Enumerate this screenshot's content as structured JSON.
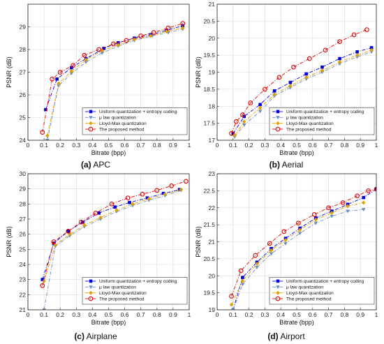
{
  "figure": {
    "legend": [
      "Uniform quantization + entropy coding",
      "μ law quantization",
      "Lloyd-Max quantization",
      "The proposed method"
    ]
  },
  "chart_data": [
    {
      "type": "line",
      "panel_label": "(a)",
      "caption": "APC",
      "xlabel": "Bitrate (bpp)",
      "ylabel": "PSNR (dB)",
      "xlim": [
        0,
        1
      ],
      "ylim": [
        24,
        30
      ],
      "xticks": [
        "0",
        "0.1",
        "0.2",
        "0.3",
        "0.4",
        "0.5",
        "0.6",
        "0.7",
        "0.8",
        "0.9",
        "1"
      ],
      "yticks": [
        "24",
        "25",
        "26",
        "27",
        "28",
        "29"
      ],
      "ytickvals": [
        24,
        25,
        26,
        27,
        28,
        29
      ],
      "grid": true,
      "legend_position": "lower-right",
      "series": [
        {
          "name": "Uniform quantization + entropy coding",
          "color": "#0000dd",
          "style": "dashdot",
          "marker": "square",
          "x": [
            0.11,
            0.18,
            0.27,
            0.36,
            0.47,
            0.56,
            0.66,
            0.76,
            0.86,
            0.96
          ],
          "y": [
            25.35,
            26.7,
            27.2,
            27.6,
            28.05,
            28.3,
            28.5,
            28.65,
            28.85,
            29.05
          ]
        },
        {
          "name": "μ law quantization",
          "color": "#6a8fbf",
          "style": "dashdot",
          "marker": "triangle-down",
          "x": [
            0.12,
            0.19,
            0.27,
            0.36,
            0.46,
            0.56,
            0.66,
            0.77,
            0.87,
            0.96
          ],
          "y": [
            24.0,
            26.4,
            26.95,
            27.45,
            27.85,
            28.15,
            28.4,
            28.6,
            28.75,
            28.9
          ]
        },
        {
          "name": "Lloyd-Max quantization",
          "color": "#e0a000",
          "style": "dashdot",
          "marker": "diamond",
          "x": [
            0.12,
            0.19,
            0.27,
            0.36,
            0.46,
            0.56,
            0.66,
            0.76,
            0.86,
            0.96
          ],
          "y": [
            24.2,
            26.5,
            27.05,
            27.55,
            27.95,
            28.2,
            28.45,
            28.6,
            28.8,
            28.95
          ]
        },
        {
          "name": "The proposed method",
          "color": "#dd0000",
          "style": "dashdot",
          "marker": "circle",
          "x": [
            0.09,
            0.15,
            0.2,
            0.28,
            0.35,
            0.44,
            0.53,
            0.61,
            0.7,
            0.78,
            0.87,
            0.96
          ],
          "y": [
            24.35,
            26.7,
            27.0,
            27.3,
            27.75,
            28.0,
            28.25,
            28.4,
            28.6,
            28.75,
            28.95,
            29.15
          ]
        }
      ]
    },
    {
      "type": "line",
      "panel_label": "(b)",
      "caption": "Aerial",
      "xlabel": "Bitrate (bpp)",
      "ylabel": "PSNR (dB)",
      "xlim": [
        0,
        1
      ],
      "ylim": [
        17,
        21
      ],
      "xticks": [
        "0",
        "0.1",
        "0.2",
        "0.3",
        "0.4",
        "0.5",
        "0.6",
        "0.7",
        "0.8",
        "0.9",
        "1"
      ],
      "yticks": [
        "17",
        "17.5",
        "18",
        "18.5",
        "19",
        "19.5",
        "20",
        "20.5",
        "21"
      ],
      "ytickvals": [
        17,
        17.5,
        18,
        18.5,
        19,
        19.5,
        20,
        20.5,
        21
      ],
      "grid": true,
      "legend_position": "lower-right",
      "series": [
        {
          "name": "Uniform quantization + entropy coding",
          "color": "#0000dd",
          "style": "dashdot",
          "marker": "square",
          "x": [
            0.1,
            0.17,
            0.27,
            0.36,
            0.46,
            0.56,
            0.66,
            0.77,
            0.88,
            0.97
          ],
          "y": [
            17.2,
            17.7,
            18.05,
            18.45,
            18.7,
            18.95,
            19.15,
            19.4,
            19.6,
            19.72
          ]
        },
        {
          "name": "μ law quantization",
          "color": "#6a8fbf",
          "style": "dashdot",
          "marker": "triangle-down",
          "x": [
            0.11,
            0.17,
            0.27,
            0.36,
            0.46,
            0.56,
            0.66,
            0.77,
            0.88,
            0.97
          ],
          "y": [
            17.1,
            17.45,
            17.85,
            18.3,
            18.55,
            18.8,
            19.0,
            19.25,
            19.45,
            19.6
          ]
        },
        {
          "name": "Lloyd-Max quantization",
          "color": "#e0a000",
          "style": "dashdot",
          "marker": "diamond",
          "x": [
            0.11,
            0.17,
            0.27,
            0.36,
            0.46,
            0.56,
            0.66,
            0.77,
            0.88,
            0.97
          ],
          "y": [
            17.15,
            17.55,
            17.95,
            18.35,
            18.6,
            18.85,
            19.05,
            19.3,
            19.5,
            19.65
          ]
        },
        {
          "name": "The proposed method",
          "color": "#dd0000",
          "style": "dashdot",
          "marker": "circle",
          "x": [
            0.09,
            0.12,
            0.16,
            0.21,
            0.3,
            0.39,
            0.48,
            0.58,
            0.68,
            0.77,
            0.86,
            0.94
          ],
          "y": [
            17.2,
            17.55,
            17.75,
            18.1,
            18.5,
            18.85,
            19.15,
            19.4,
            19.65,
            19.9,
            20.1,
            20.25
          ]
        }
      ]
    },
    {
      "type": "line",
      "panel_label": "(c)",
      "caption": "Airplane",
      "xlabel": "Bitrate (bpp)",
      "ylabel": "PSNR (dB)",
      "xlim": [
        0,
        1
      ],
      "ylim": [
        21,
        30
      ],
      "xticks": [
        "0",
        "0.1",
        "0.2",
        "0.3",
        "0.4",
        "0.5",
        "0.6",
        "0.7",
        "0.8",
        "0.9",
        "1"
      ],
      "yticks": [
        "21",
        "22",
        "23",
        "24",
        "25",
        "26",
        "27",
        "28",
        "29",
        "30"
      ],
      "ytickvals": [
        21,
        22,
        23,
        24,
        25,
        26,
        27,
        28,
        29,
        30
      ],
      "grid": true,
      "legend_position": "lower-right",
      "series": [
        {
          "name": "Uniform quantization + entropy coding",
          "color": "#0000dd",
          "style": "dashdot",
          "marker": "square",
          "x": [
            0.09,
            0.16,
            0.25,
            0.34,
            0.44,
            0.54,
            0.63,
            0.74,
            0.84,
            0.94
          ],
          "y": [
            23.0,
            25.4,
            26.2,
            26.8,
            27.4,
            27.8,
            28.1,
            28.4,
            28.7,
            28.95
          ]
        },
        {
          "name": "μ law quantization",
          "color": "#6a8fbf",
          "style": "dashdot",
          "marker": "triangle-down",
          "x": [
            0.1,
            0.17,
            0.26,
            0.35,
            0.45,
            0.55,
            0.65,
            0.75,
            0.85,
            0.95
          ],
          "y": [
            21.0,
            25.2,
            25.9,
            26.5,
            27.0,
            27.5,
            27.9,
            28.25,
            28.55,
            28.9
          ]
        },
        {
          "name": "Lloyd-Max quantization",
          "color": "#e0a000",
          "style": "dashdot",
          "marker": "diamond",
          "x": [
            0.1,
            0.17,
            0.26,
            0.35,
            0.45,
            0.55,
            0.65,
            0.75,
            0.85,
            0.95
          ],
          "y": [
            22.9,
            25.3,
            26.0,
            26.6,
            27.1,
            27.6,
            28.0,
            28.35,
            28.65,
            28.95
          ]
        },
        {
          "name": "The proposed method",
          "color": "#dd0000",
          "style": "dashdot",
          "marker": "circle",
          "x": [
            0.09,
            0.16,
            0.25,
            0.33,
            0.42,
            0.52,
            0.62,
            0.71,
            0.8,
            0.89,
            0.98
          ],
          "y": [
            22.6,
            25.5,
            26.2,
            26.8,
            27.4,
            28.0,
            28.4,
            28.65,
            28.9,
            29.2,
            29.5
          ]
        }
      ]
    },
    {
      "type": "line",
      "panel_label": "(d)",
      "caption": "Airport",
      "xlabel": "Bitrate (bpp)",
      "ylabel": "PSNR (dB)",
      "xlim": [
        0,
        1
      ],
      "ylim": [
        19,
        23
      ],
      "xticks": [
        "0",
        "0.1",
        "0.2",
        "0.3",
        "0.4",
        "0.5",
        "0.6",
        "0.7",
        "0.8",
        "0.9",
        "1"
      ],
      "yticks": [
        "19",
        "19.5",
        "20",
        "20.5",
        "21",
        "21.5",
        "22",
        "22.5",
        "23"
      ],
      "ytickvals": [
        19,
        19.5,
        20,
        20.5,
        21,
        21.5,
        22,
        22.5,
        23
      ],
      "grid": true,
      "legend_position": "lower-right",
      "series": [
        {
          "name": "Uniform quantization + entropy coding",
          "color": "#0000dd",
          "style": "dashdot",
          "marker": "square",
          "x": [
            0.1,
            0.16,
            0.25,
            0.34,
            0.43,
            0.52,
            0.62,
            0.72,
            0.82,
            0.92,
            1.0
          ],
          "y": [
            19.0,
            19.95,
            20.4,
            20.8,
            21.1,
            21.4,
            21.7,
            21.9,
            22.1,
            22.3,
            22.55
          ]
        },
        {
          "name": "μ law quantization",
          "color": "#6a8fbf",
          "style": "dashdot",
          "marker": "triangle-down",
          "x": [
            0.1,
            0.16,
            0.25,
            0.34,
            0.43,
            0.52,
            0.62,
            0.72,
            0.82,
            0.92
          ],
          "y": [
            19.0,
            19.75,
            20.25,
            20.65,
            20.95,
            21.25,
            21.55,
            21.75,
            21.9,
            21.95
          ]
        },
        {
          "name": "Lloyd-Max quantization",
          "color": "#e0a000",
          "style": "dashdot",
          "marker": "diamond",
          "x": [
            0.09,
            0.16,
            0.25,
            0.34,
            0.43,
            0.52,
            0.62,
            0.72,
            0.82,
            0.92
          ],
          "y": [
            19.15,
            19.85,
            20.35,
            20.75,
            21.05,
            21.35,
            21.65,
            21.85,
            22.05,
            22.15
          ]
        },
        {
          "name": "The proposed method",
          "color": "#dd0000",
          "style": "dashdot",
          "marker": "circle",
          "x": [
            0.09,
            0.15,
            0.24,
            0.33,
            0.42,
            0.51,
            0.61,
            0.7,
            0.79,
            0.88,
            0.95,
            1.0
          ],
          "y": [
            19.4,
            20.15,
            20.6,
            20.95,
            21.3,
            21.55,
            21.8,
            22.0,
            22.15,
            22.35,
            22.5,
            22.55
          ]
        }
      ]
    }
  ]
}
